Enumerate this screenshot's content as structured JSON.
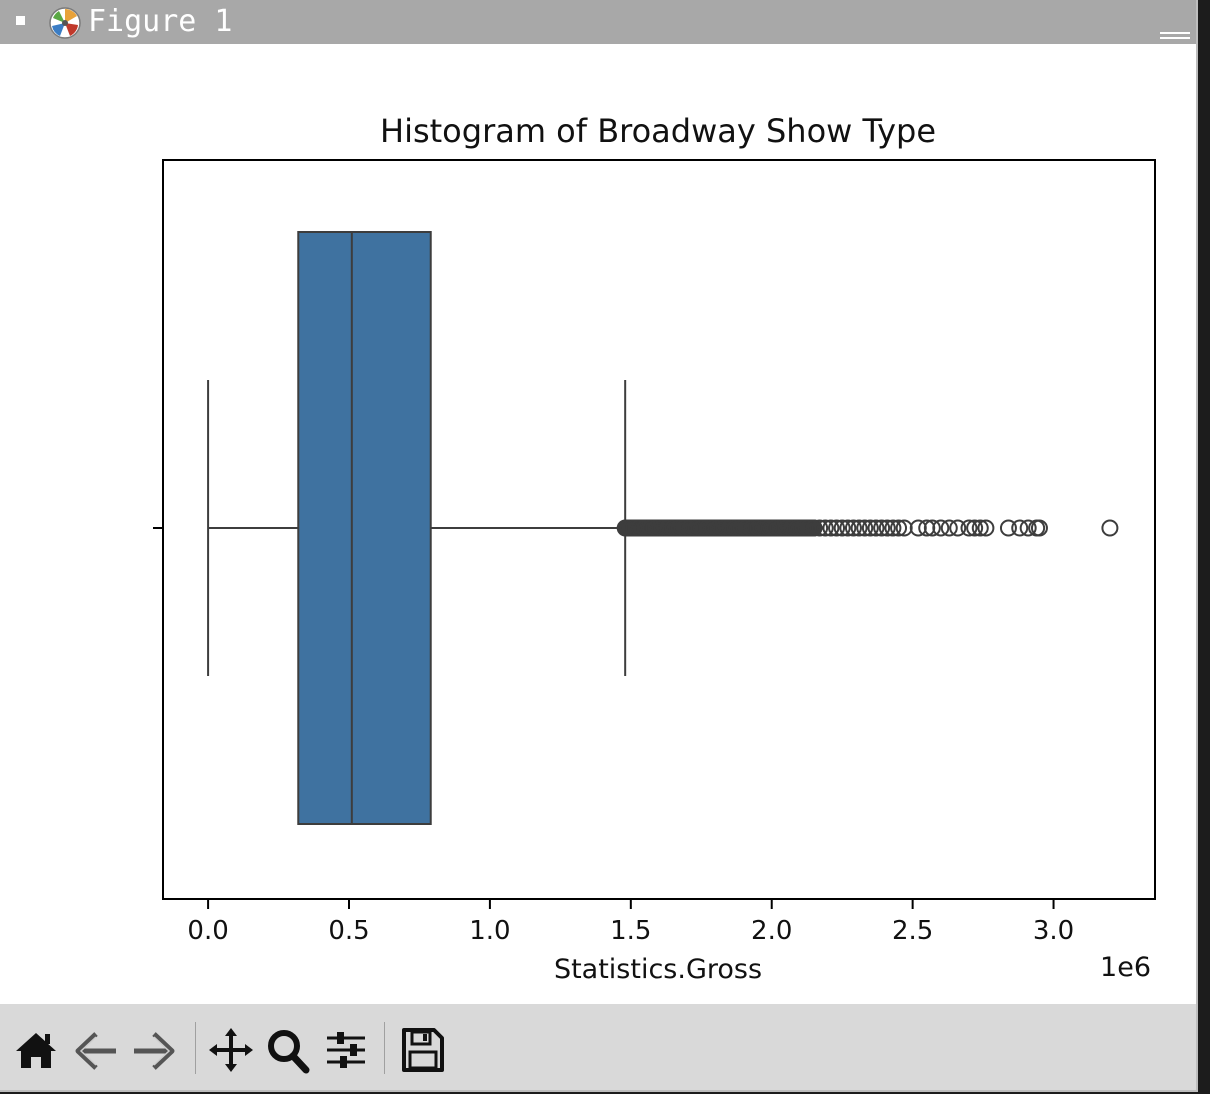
{
  "window": {
    "title": "Figure 1"
  },
  "toolbar": {
    "buttons": [
      "home-icon",
      "back-arrow-icon",
      "forward-arrow-icon",
      "pan-move-icon",
      "zoom-magnifier-icon",
      "configure-subplots-icon",
      "save-floppy-icon"
    ]
  },
  "chart_data": {
    "type": "boxplot",
    "title": "Histogram of Broadway Show Type",
    "xlabel": "Statistics.Gross",
    "ylabel": "",
    "offset_label": "1e6",
    "x_scale_factor": 1000000,
    "xlim": [
      -0.16,
      3.36
    ],
    "xticks": [
      0.0,
      0.5,
      1.0,
      1.5,
      2.0,
      2.5,
      3.0
    ],
    "xtick_labels": [
      "0.0",
      "0.5",
      "1.0",
      "1.5",
      "2.0",
      "2.5",
      "3.0"
    ],
    "orientation": "horizontal",
    "grid": false,
    "box": {
      "whisker_low": 0.0,
      "q1": 0.32,
      "median": 0.51,
      "q3": 0.79,
      "whisker_high": 1.48,
      "color": "#3f72a0",
      "edge_color": "#3d3d3d"
    },
    "outliers": [
      1.49,
      1.51,
      1.53,
      1.55,
      1.57,
      1.59,
      1.61,
      1.63,
      1.65,
      1.67,
      1.69,
      1.71,
      1.73,
      1.75,
      1.77,
      1.79,
      1.81,
      1.83,
      1.85,
      1.87,
      1.89,
      1.91,
      1.93,
      1.95,
      1.97,
      1.99,
      2.01,
      2.03,
      2.05,
      2.07,
      2.09,
      2.11,
      2.13,
      2.15,
      2.17,
      2.19,
      2.21,
      2.23,
      2.25,
      2.27,
      2.29,
      2.31,
      2.33,
      2.35,
      2.37,
      2.39,
      2.41,
      2.43,
      2.45,
      2.47,
      2.52,
      2.55,
      2.57,
      2.6,
      2.63,
      2.66,
      2.7,
      2.72,
      2.74,
      2.76,
      2.84,
      2.88,
      2.91,
      2.94,
      2.95,
      3.2
    ]
  }
}
